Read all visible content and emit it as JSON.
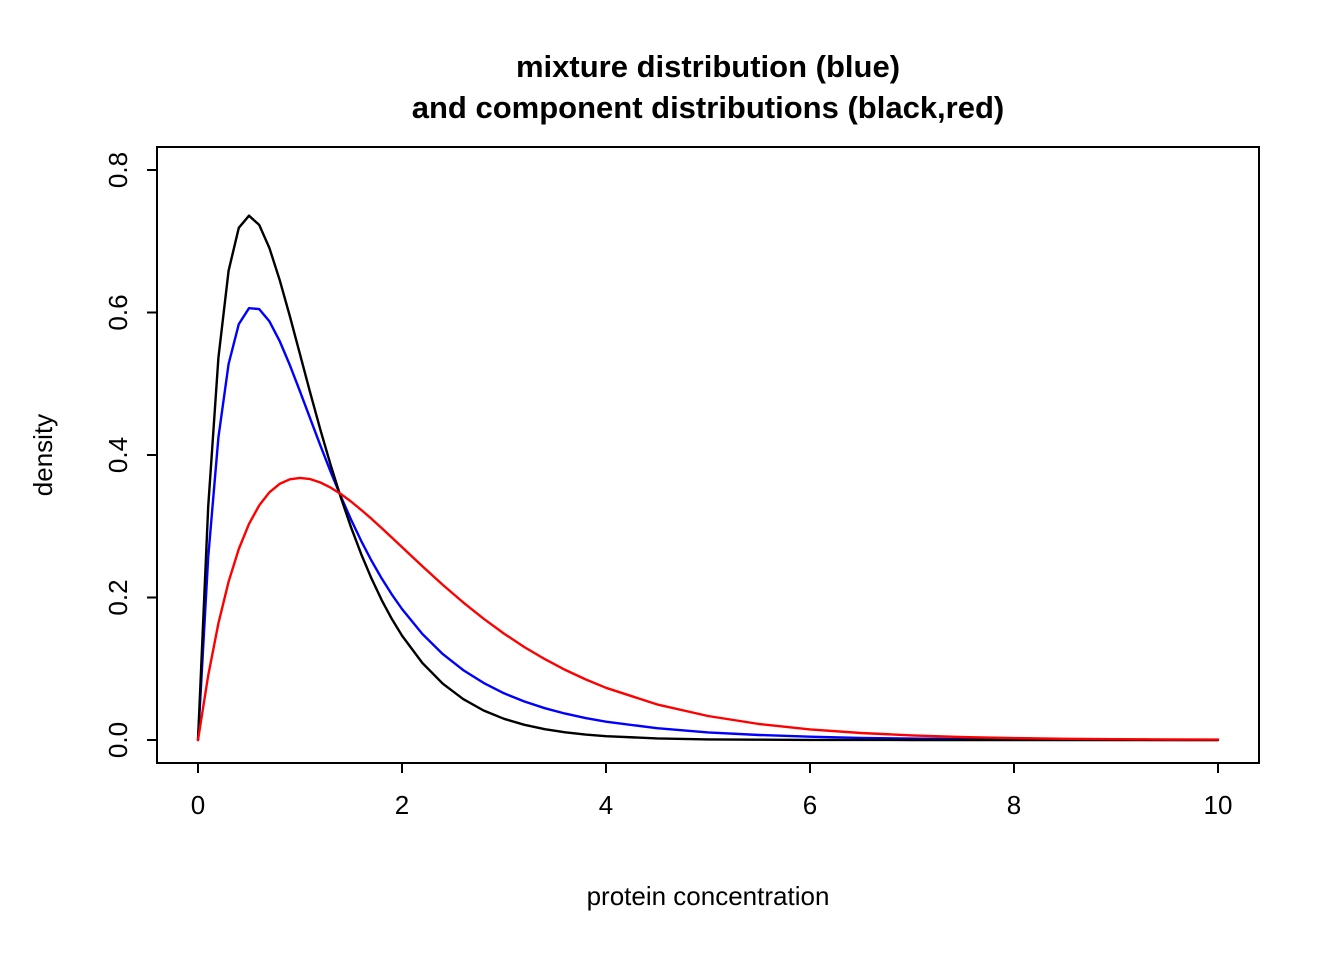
{
  "chart_data": {
    "type": "line",
    "title_lines": [
      "mixture distribution (blue)",
      "and component distributions (black,red)"
    ],
    "xlabel": "protein concentration",
    "ylabel": "density",
    "xlim": [
      0,
      10
    ],
    "ylim": [
      0,
      0.8
    ],
    "x_ticks": [
      0,
      2,
      4,
      6,
      8,
      10
    ],
    "x_tick_labels": [
      "0",
      "2",
      "4",
      "6",
      "8",
      "10"
    ],
    "y_ticks": [
      0.0,
      0.2,
      0.4,
      0.6,
      0.8
    ],
    "y_tick_labels": [
      "0.0",
      "0.2",
      "0.4",
      "0.6",
      "0.8"
    ],
    "grid": false,
    "legend_position": "none",
    "x": [
      0,
      0.1,
      0.2,
      0.3,
      0.4,
      0.5,
      0.6,
      0.7,
      0.8,
      0.9,
      1,
      1.1,
      1.2,
      1.3,
      1.4,
      1.5,
      1.6,
      1.7,
      1.8,
      1.9,
      2,
      2.2,
      2.4,
      2.6,
      2.8,
      3,
      3.2,
      3.4,
      3.6,
      3.8,
      4,
      4.5,
      5,
      5.5,
      6,
      6.5,
      7,
      7.5,
      8,
      8.5,
      9,
      9.5,
      10
    ],
    "series": [
      {
        "name": "mixture",
        "color": "#0000ff",
        "peak": {
          "x": 0.5,
          "y": 0.61
        },
        "values": [
          0,
          0.2564,
          0.4245,
          0.5277,
          0.5837,
          0.606,
          0.6048,
          0.5876,
          0.5601,
          0.5263,
          0.4893,
          0.4511,
          0.4132,
          0.3766,
          0.3419,
          0.3095,
          0.2795,
          0.252,
          0.227,
          0.2043,
          0.1838,
          0.1488,
          0.1206,
          0.0981,
          0.0801,
          0.0656,
          0.054,
          0.0446,
          0.037,
          0.0308,
          0.0257,
          0.0166,
          0.0107,
          0.007,
          0.0046,
          0.003,
          0.0019,
          0.0013,
          0.0008,
          0.0005,
          0.0003,
          0.0002,
          0.0001
        ]
      },
      {
        "name": "component-black",
        "color": "#000000",
        "peak": {
          "x": 0.5,
          "y": 0.736
        },
        "values": [
          0,
          0.3275,
          0.5363,
          0.6586,
          0.7189,
          0.7358,
          0.7229,
          0.6905,
          0.6461,
          0.5951,
          0.5413,
          0.4875,
          0.4354,
          0.3862,
          0.3405,
          0.2987,
          0.2609,
          0.2269,
          0.1967,
          0.17,
          0.1465,
          0.108,
          0.079,
          0.0574,
          0.0414,
          0.0297,
          0.0213,
          0.0151,
          0.0108,
          0.0076,
          0.0054,
          0.0022,
          0.0009,
          0.0004,
          0.0001,
          0.0001,
          0,
          0,
          0,
          0,
          0,
          0,
          0
        ]
      },
      {
        "name": "component-red",
        "color": "#ff0000",
        "peak": {
          "x": 1.0,
          "y": 0.368
        },
        "values": [
          0,
          0.0905,
          0.1637,
          0.2222,
          0.2681,
          0.3033,
          0.3293,
          0.3476,
          0.3595,
          0.3659,
          0.3679,
          0.3662,
          0.3614,
          0.3543,
          0.3452,
          0.3347,
          0.323,
          0.3106,
          0.2975,
          0.2842,
          0.2707,
          0.2438,
          0.2177,
          0.1931,
          0.1703,
          0.1494,
          0.1304,
          0.1135,
          0.0984,
          0.085,
          0.0733,
          0.05,
          0.0337,
          0.0225,
          0.0149,
          0.0098,
          0.0064,
          0.0041,
          0.0027,
          0.0017,
          0.0011,
          0.0007,
          0.0005
        ]
      }
    ]
  }
}
